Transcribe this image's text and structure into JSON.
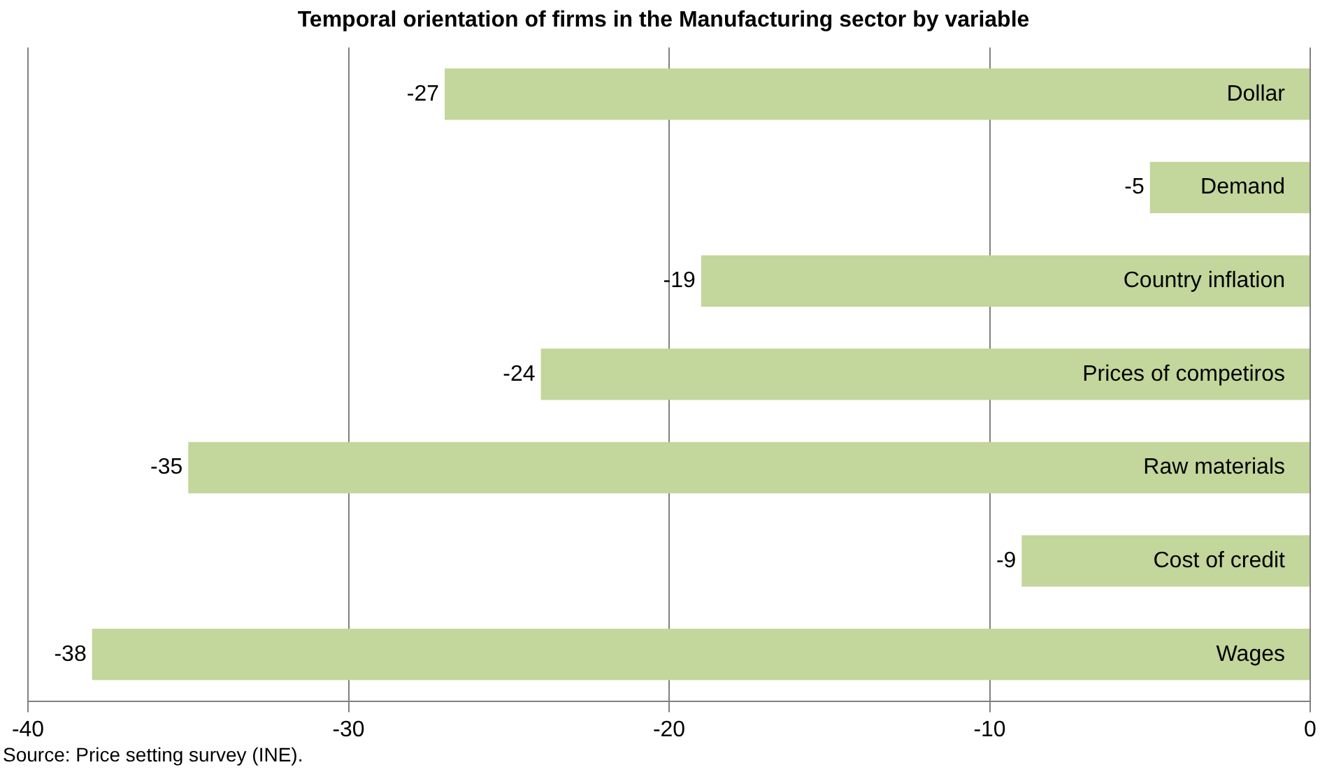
{
  "chart_data": {
    "type": "bar",
    "orientation": "horizontal",
    "title": "Temporal orientation of firms in the Manufacturing sector by variable",
    "categories": [
      "Dollar",
      "Demand",
      "Country inflation",
      "Prices of competiros",
      "Raw materials",
      "Cost of credit",
      "Wages"
    ],
    "values": [
      -27,
      -5,
      -19,
      -24,
      -35,
      -9,
      -38
    ],
    "color": "#c3d69b",
    "xlim": [
      -40,
      0
    ],
    "xticks": [
      -40,
      -30,
      -20,
      -10,
      0
    ],
    "grid": "x",
    "data_labels": true,
    "legend": false,
    "annotations": [
      "Source: Price setting survey (INE)."
    ]
  }
}
